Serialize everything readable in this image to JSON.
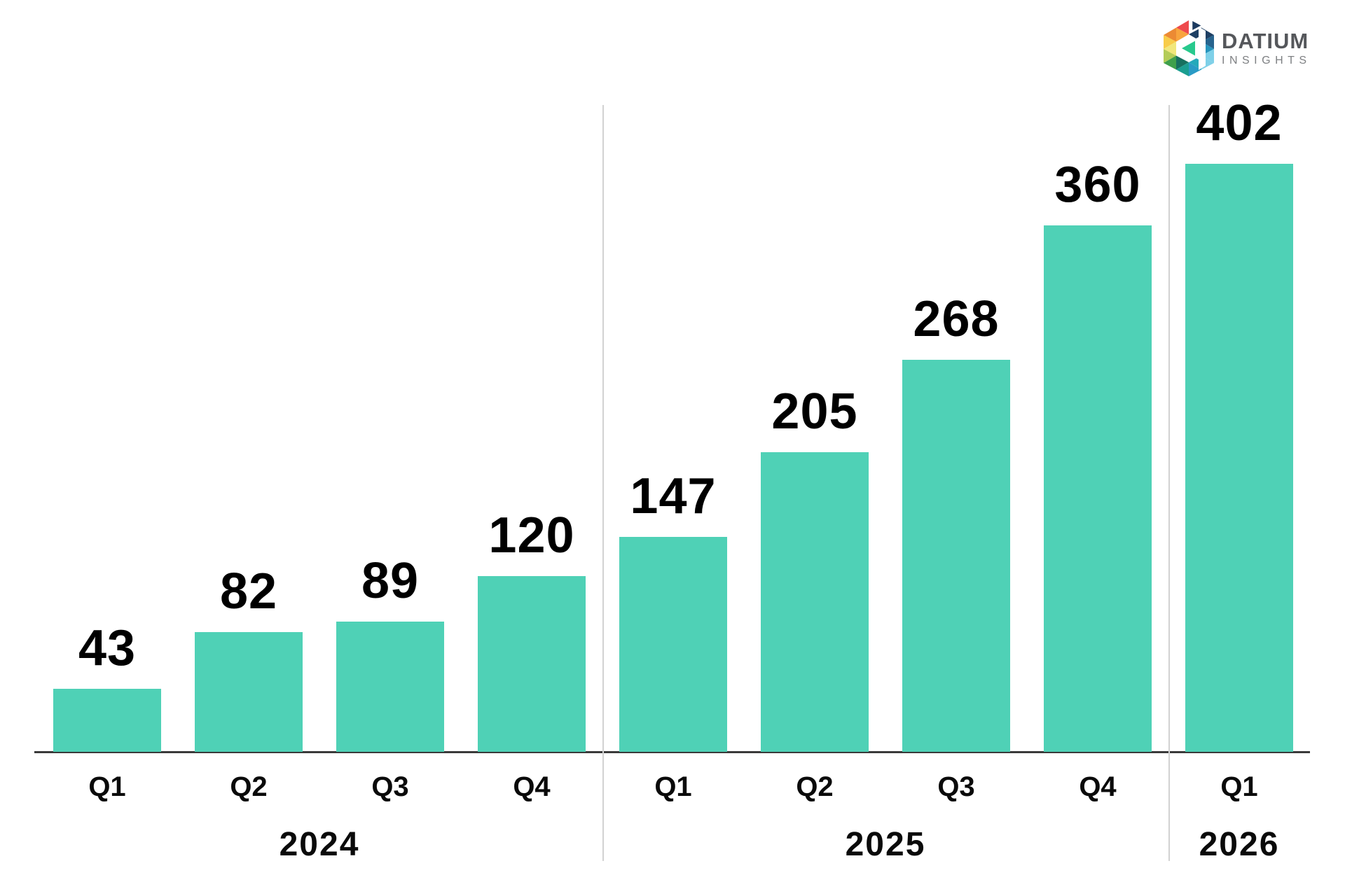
{
  "brand": {
    "name": "DATIUM",
    "tagline": "INSIGHTS"
  },
  "chart_data": {
    "type": "bar",
    "title": "",
    "xlabel": "",
    "ylabel": "",
    "ylim": [
      0,
      430
    ],
    "grid": false,
    "legend": false,
    "value_labels_shown": true,
    "points": [
      {
        "quarter": "Q1",
        "year": "2024",
        "value": 43
      },
      {
        "quarter": "Q2",
        "year": "2024",
        "value": 82
      },
      {
        "quarter": "Q3",
        "year": "2024",
        "value": 89
      },
      {
        "quarter": "Q4",
        "year": "2024",
        "value": 120
      },
      {
        "quarter": "Q1",
        "year": "2025",
        "value": 147
      },
      {
        "quarter": "Q2",
        "year": "2025",
        "value": 205
      },
      {
        "quarter": "Q3",
        "year": "2025",
        "value": 268
      },
      {
        "quarter": "Q4",
        "year": "2025",
        "value": 360
      },
      {
        "quarter": "Q1",
        "year": "2026",
        "value": 402
      }
    ],
    "year_groups": [
      {
        "label": "2024",
        "quarters": [
          "Q1",
          "Q2",
          "Q3",
          "Q4"
        ]
      },
      {
        "label": "2025",
        "quarters": [
          "Q1",
          "Q2",
          "Q3",
          "Q4"
        ]
      },
      {
        "label": "2026",
        "quarters": [
          "Q1"
        ]
      }
    ],
    "colors": {
      "bar": "#4fd1b6",
      "value_label": "#000000",
      "axis": "#3a3a3a",
      "separator": "#d2d2d2"
    }
  },
  "logo_palette": {
    "red": "#ee4a4d",
    "orange_dark": "#ec8a33",
    "orange_light": "#f8a43d",
    "yellow": "#f8cc49",
    "pale_yellow": "#f1e77b",
    "yellow_green": "#b4cc57",
    "green": "#3fa04b",
    "dark_teal": "#17705f",
    "teal": "#1b9e90",
    "blue": "#2a9bc5",
    "teal_blue": "#25a9ba",
    "navy": "#1e3f63",
    "steel_blue": "#27648e",
    "blue_mid": "#2795bd",
    "light_blue": "#7ed0e8",
    "mint": "#28c98d",
    "arrow_navy": "#1b3a5f"
  }
}
